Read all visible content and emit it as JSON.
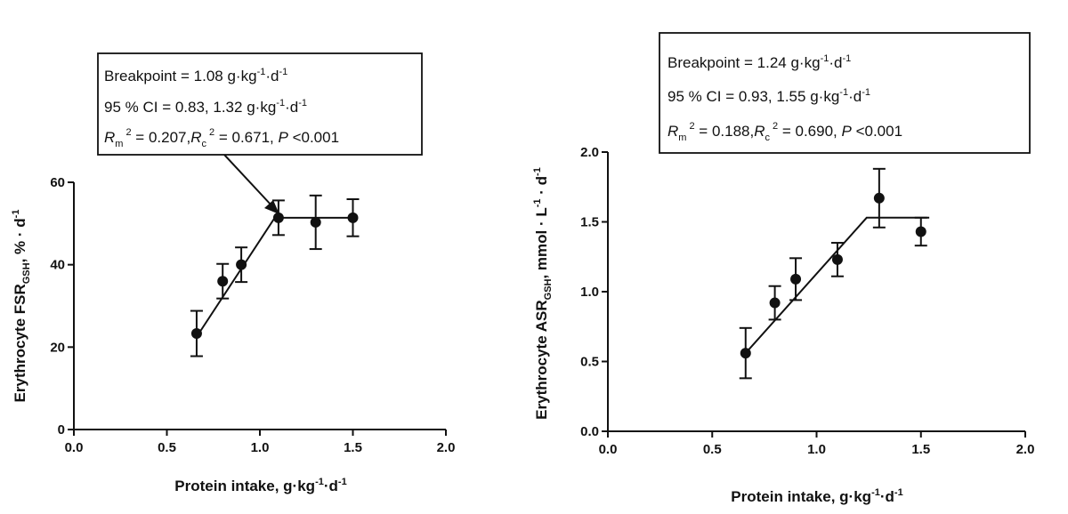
{
  "chart_data": [
    {
      "type": "scatter",
      "panel": "left",
      "xlabel": {
        "main": "Protein intake, g",
        "dot": "·",
        "kg": "kg",
        "sup1": "-1",
        "dot2": "·",
        "d": "d",
        "sup2": "-1"
      },
      "ylabel": {
        "main": "Erythrocyte FSR",
        "sub": "GSH",
        "unit": ", % · d",
        "sup": "-1"
      },
      "xlim": [
        0.0,
        2.0
      ],
      "ylim": [
        0,
        60
      ],
      "xticks": [
        0.0,
        0.5,
        1.0,
        1.5,
        2.0
      ],
      "xtick_labels": [
        "0.0",
        "0.5",
        "1.0",
        "1.5",
        "2.0"
      ],
      "yticks": [
        0,
        20,
        40,
        60
      ],
      "ytick_labels": [
        "0",
        "20",
        "40",
        "60"
      ],
      "points": [
        {
          "x": 0.66,
          "y": 23.3,
          "err": 5.5
        },
        {
          "x": 0.8,
          "y": 36.0,
          "err": 4.2
        },
        {
          "x": 0.9,
          "y": 40.0,
          "err": 4.2
        },
        {
          "x": 1.1,
          "y": 51.4,
          "err": 4.2
        },
        {
          "x": 1.3,
          "y": 50.3,
          "err": 6.5
        },
        {
          "x": 1.5,
          "y": 51.4,
          "err": 4.5
        }
      ],
      "fit": [
        [
          0.66,
          22.5
        ],
        [
          1.08,
          51.4
        ],
        [
          1.5,
          51.4
        ]
      ],
      "annotation": {
        "line1": {
          "prefix": "Breakpoint = 1.08 g",
          "dot1": "·",
          "kg": "kg",
          "sup1": "-1",
          "dot2": "·",
          "d": "d",
          "sup2": "-1"
        },
        "line2": {
          "prefix": "95 % CI = 0.83,  1.32 g",
          "dot1": "·",
          "kg": "kg",
          "sup1": "-1",
          "dot2": "·",
          "d": "d",
          "sup2": "-1"
        },
        "line3": {
          "r": "R",
          "m": "m",
          "sq": "2",
          "mid": " = 0.207,",
          "r2": "R",
          "c": "c",
          "sq2": "2",
          "tail": " = 0.671,  ",
          "p": "P",
          "ptail": " <0.001"
        }
      }
    },
    {
      "type": "scatter",
      "panel": "right",
      "xlabel": {
        "main": "Protein intake, g",
        "dot": "·",
        "kg": "kg",
        "sup1": "-1",
        "dot2": "·",
        "d": "d",
        "sup2": "-1"
      },
      "ylabel": {
        "main": "Erythrocyte ASR",
        "sub": "GSH",
        "unit": ", mmol · L",
        "sup": "-1",
        "unit2": " · d",
        "sup2": "-1"
      },
      "xlim": [
        0.0,
        2.0
      ],
      "ylim": [
        0.0,
        2.0
      ],
      "xticks": [
        0.0,
        0.5,
        1.0,
        1.5,
        2.0
      ],
      "xtick_labels": [
        "0.0",
        "0.5",
        "1.0",
        "1.5",
        "2.0"
      ],
      "yticks": [
        0.0,
        0.5,
        1.0,
        1.5,
        2.0
      ],
      "ytick_labels": [
        "0.0",
        "0.5",
        "1.0",
        "1.5",
        "2.0"
      ],
      "points": [
        {
          "x": 0.66,
          "y": 0.56,
          "err": 0.18
        },
        {
          "x": 0.8,
          "y": 0.92,
          "err": 0.12
        },
        {
          "x": 0.9,
          "y": 1.09,
          "err": 0.15
        },
        {
          "x": 1.1,
          "y": 1.23,
          "err": 0.12
        },
        {
          "x": 1.3,
          "y": 1.67,
          "err": 0.21
        },
        {
          "x": 1.5,
          "y": 1.43,
          "err": 0.1
        }
      ],
      "fit": [
        [
          0.66,
          0.56
        ],
        [
          1.24,
          1.53
        ],
        [
          1.54,
          1.53
        ]
      ],
      "annotation": {
        "line1": {
          "prefix": "Breakpoint = 1.24 g",
          "dot1": "·",
          "kg": "kg",
          "sup1": "-1",
          "dot2": "·",
          "d": "d",
          "sup2": "-1"
        },
        "line2": {
          "prefix": "95 % CI = 0.93,  1.55 g",
          "dot1": "·",
          "kg": "kg",
          "sup1": "-1",
          "dot2": "·",
          "d": "d",
          "sup2": "-1"
        },
        "line3": {
          "r": "R",
          "m": "m",
          "sq": "2",
          "mid": " = 0.188,",
          "r2": "R",
          "c": "c",
          "sq2": "2",
          "tail": " = 0.690,  ",
          "p": "P",
          "ptail": " <0.001"
        }
      }
    }
  ]
}
